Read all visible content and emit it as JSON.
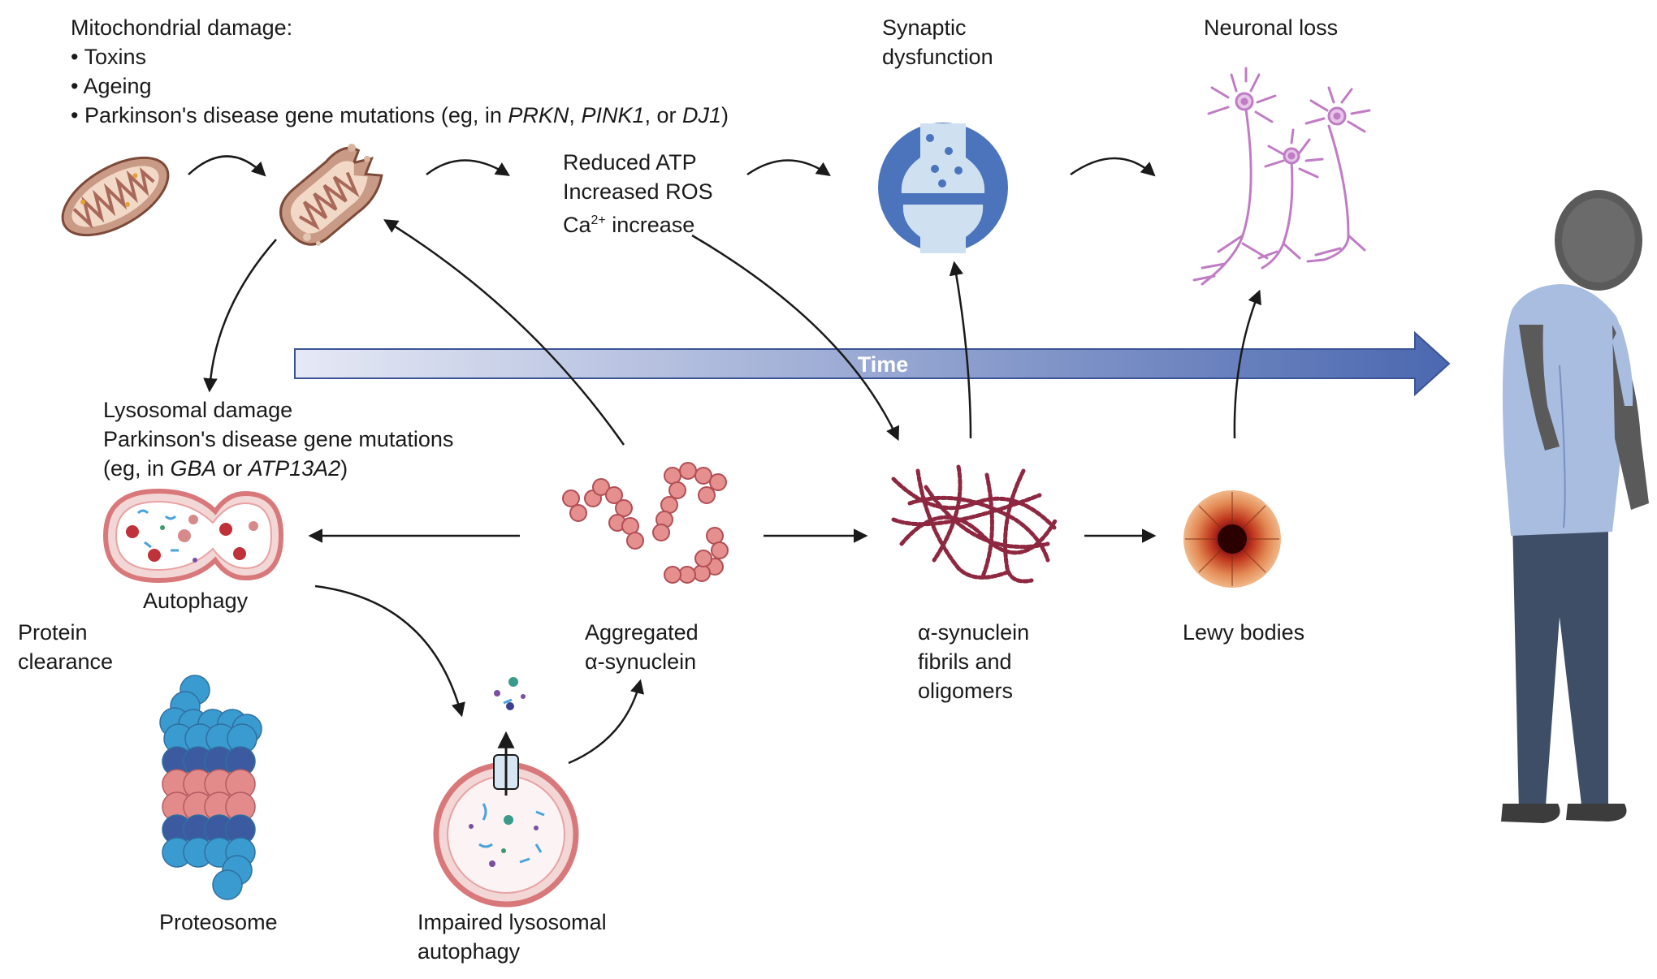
{
  "mito": {
    "heading": "Mitochondrial damage:",
    "items": [
      "• Toxins",
      "• Ageing"
    ],
    "genes": {
      "prefix": "• Parkinson's disease gene mutations (eg, in ",
      "g1": "PRKN",
      "sep1": ", ",
      "g2": "PINK1",
      "sep2": ", or ",
      "g3": "DJ1",
      "suffix": ")"
    }
  },
  "stress": {
    "line1": "Reduced ATP",
    "line2": "Increased ROS",
    "line3_prefix": "Ca",
    "line3_sup": "2+",
    "line3_suffix": " increase"
  },
  "synaptic": {
    "line1": "Synaptic",
    "line2": "dysfunction"
  },
  "neuronal_loss": "Neuronal loss",
  "time_label": "Time",
  "lysosomal": {
    "line1": "Lysosomal damage",
    "line2": "Parkinson's disease gene mutations",
    "line3_prefix": "(eg, in ",
    "g1": "GBA",
    "sep": " or ",
    "g2": "ATP13A2",
    "line3_suffix": ")"
  },
  "autophagy": "Autophagy",
  "protein_clearance": {
    "line1": "Protein",
    "line2": "clearance"
  },
  "aggregated": {
    "line1": "Aggregated",
    "line2": "α-synuclein"
  },
  "fibrils": {
    "line1": "α-synuclein",
    "line2": "fibrils and",
    "line3": "oligomers"
  },
  "lewy": "Lewy bodies",
  "proteosome": "Proteosome",
  "impaired": {
    "line1": "Impaired lysosomal",
    "line2": "autophagy"
  },
  "colors": {
    "arrow": "#1a1a1a",
    "time_start": "#e6e9f5",
    "time_end": "#4b68b0",
    "mito": "#c99a86",
    "lysosome": "#d9787a",
    "synuclein": "#e58f8f",
    "proteosome_blue": "#3a9bd0",
    "proteosome_navy": "#3b5aa0",
    "proteosome_pink": "#e38b8b",
    "synapse": "#4b74bd",
    "neuron": "#c07cc4",
    "fibril": "#8e2740"
  }
}
